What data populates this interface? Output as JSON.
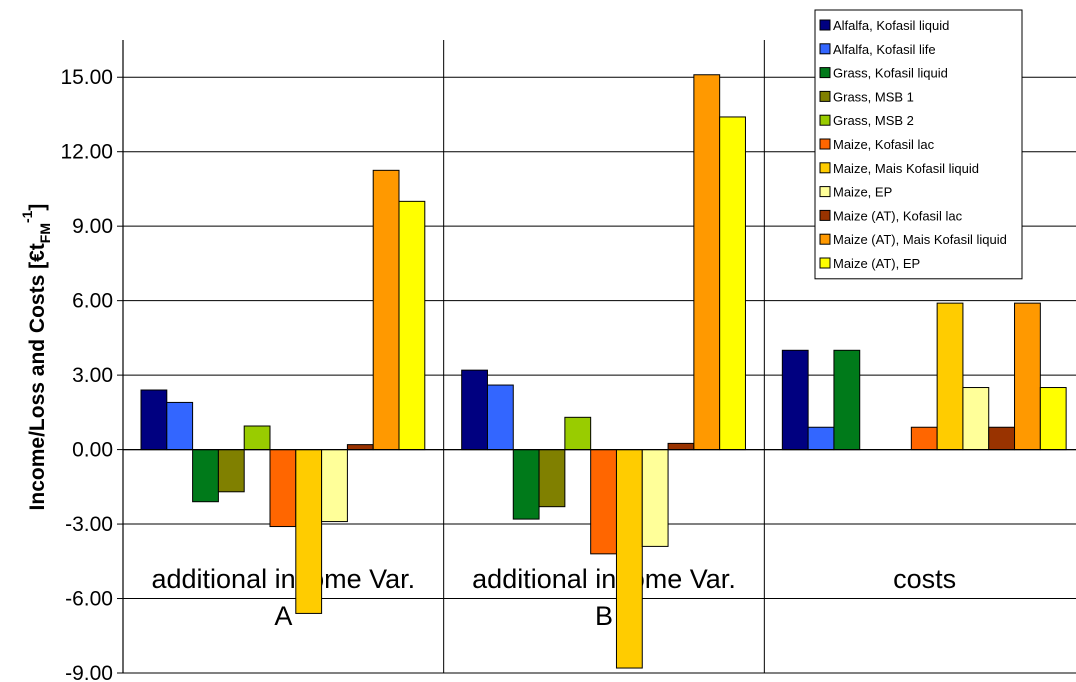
{
  "chart_data": {
    "type": "bar",
    "ylabel": "Income/Loss and Costs [€t",
    "ylabel_sub": "FM",
    "ylabel_sup": "-1",
    "ylabel_end": "]",
    "ylim": [
      -9,
      16.5
    ],
    "yticks": [
      -9,
      -6,
      -3,
      0,
      3,
      6,
      9,
      12,
      15
    ],
    "ytick_labels": [
      "-9.00",
      "-6.00",
      "-3.00",
      "0.00",
      "3.00",
      "6.00",
      "9.00",
      "12.00",
      "15.00"
    ],
    "grid": true,
    "legend_position": "top-right",
    "categories": [
      {
        "line1": "additional income Var.",
        "line2": "A"
      },
      {
        "line1": "additional income Var.",
        "line2": "B"
      },
      {
        "line1": "costs",
        "line2": ""
      }
    ],
    "series": [
      {
        "name": "Alfalfa, Kofasil liquid",
        "color": "#000080",
        "values": [
          2.4,
          3.2,
          4.0
        ]
      },
      {
        "name": "Alfalfa, Kofasil life",
        "color": "#3366FF",
        "values": [
          1.9,
          2.6,
          0.9
        ]
      },
      {
        "name": "Grass, Kofasil liquid",
        "color": "#007A1A",
        "values": [
          -2.1,
          -2.8,
          4.0
        ]
      },
      {
        "name": "Grass, MSB 1",
        "color": "#808000",
        "values": [
          -1.7,
          -2.3,
          0
        ]
      },
      {
        "name": "Grass, MSB 2",
        "color": "#99CC00",
        "values": [
          0.95,
          1.3,
          0
        ]
      },
      {
        "name": "Maize, Kofasil lac",
        "color": "#FF6600",
        "values": [
          -3.1,
          -4.2,
          0.9
        ]
      },
      {
        "name": "Maize, Mais Kofasil liquid",
        "color": "#FFCC00",
        "values": [
          -6.6,
          -8.8,
          5.9
        ]
      },
      {
        "name": "Maize, EP",
        "color": "#FFFF99",
        "values": [
          -2.9,
          -3.9,
          2.5
        ]
      },
      {
        "name": "Maize (AT), Kofasil lac",
        "color": "#993300",
        "values": [
          0.2,
          0.25,
          0.9
        ]
      },
      {
        "name": "Maize (AT), Mais Kofasil liquid",
        "color": "#FF9900",
        "values": [
          11.25,
          15.1,
          5.9
        ]
      },
      {
        "name": "Maize (AT), EP",
        "color": "#FFFF00",
        "values": [
          10.0,
          13.4,
          2.5
        ]
      }
    ]
  }
}
